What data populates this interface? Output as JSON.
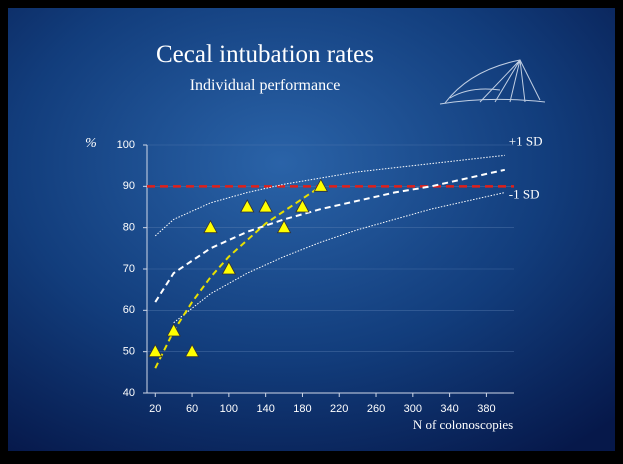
{
  "chart_data": {
    "type": "scatter",
    "title": "Cecal intubation rates",
    "subtitle": "Individual performance",
    "y_label": "%",
    "x_label": "N of colonoscopies",
    "xlim": [
      11,
      410
    ],
    "ylim": [
      40,
      100
    ],
    "xticks": [
      20,
      60,
      100,
      140,
      180,
      220,
      260,
      300,
      340,
      380
    ],
    "yticks": [
      40,
      50,
      60,
      70,
      80,
      90,
      100
    ],
    "grid": true,
    "series": [
      {
        "style": "dashed-thick",
        "color": "#e0201a",
        "x": [
          11,
          410
        ],
        "values": [
          90,
          90
        ]
      },
      {
        "name": "+1 SD",
        "style": "dotted",
        "color": "#ffffff",
        "x": [
          20,
          40,
          80,
          120,
          160,
          200,
          240,
          280,
          320,
          360,
          400
        ],
        "values": [
          78,
          82,
          86,
          88.5,
          90.5,
          92,
          93.5,
          94.5,
          95.5,
          96.5,
          97.5
        ]
      },
      {
        "style": "dashed",
        "color": "#ffffff",
        "x": [
          20,
          40,
          80,
          120,
          160,
          200,
          240,
          280,
          320,
          360,
          400
        ],
        "values": [
          62,
          69,
          75,
          79,
          82,
          84.5,
          86.5,
          88.5,
          90,
          92,
          94
        ]
      },
      {
        "name": "-1 SD",
        "style": "dotted",
        "color": "#ffffff",
        "x": [
          40,
          80,
          120,
          160,
          200,
          240,
          280,
          320,
          360,
          400
        ],
        "values": [
          57,
          64,
          69,
          73,
          76.5,
          79.5,
          82,
          84.5,
          86.5,
          88.5
        ]
      },
      {
        "style": "dashed",
        "color": "#e8e000",
        "x": [
          20,
          40,
          60,
          80,
          100,
          120,
          140,
          160,
          180,
          200
        ],
        "values": [
          46,
          55,
          62,
          68,
          73,
          77,
          81,
          84,
          87,
          90
        ]
      },
      {
        "style": "markers",
        "color": "#ffff00",
        "x": [
          20,
          40,
          60,
          80,
          100,
          120,
          140,
          160,
          180,
          200
        ],
        "values": [
          50,
          55,
          50,
          80,
          70,
          85,
          85,
          80,
          85,
          90
        ]
      }
    ]
  }
}
